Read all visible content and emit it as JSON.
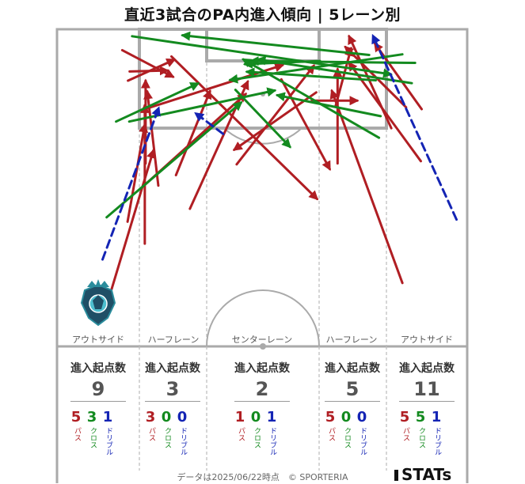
{
  "title": "直近3試合のPA内進入傾向 | 5レーン別",
  "lanes": [
    "アウトサイド",
    "ハーフレーン",
    "センターレーン",
    "ハーフレーン",
    "アウトサイド"
  ],
  "stats": [
    {
      "heading": "進入起点数",
      "total": "9",
      "pass": "5",
      "cross": "3",
      "dribble": "1"
    },
    {
      "heading": "進入起点数",
      "total": "3",
      "pass": "3",
      "cross": "0",
      "dribble": "0"
    },
    {
      "heading": "進入起点数",
      "total": "2",
      "pass": "1",
      "cross": "0",
      "dribble": "1"
    },
    {
      "heading": "進入起点数",
      "total": "5",
      "pass": "5",
      "cross": "0",
      "dribble": "0"
    },
    {
      "heading": "進入起点数",
      "total": "11",
      "pass": "5",
      "cross": "5",
      "dribble": "1"
    }
  ],
  "legend": {
    "pass": "パス",
    "cross": "クロス",
    "dribble": "ドリブル"
  },
  "colors": {
    "pass": "#b01e23",
    "cross": "#138a1f",
    "dribble": "#1424b4",
    "pitch_line": "#aaaaaa",
    "lane_line": "#bbbbbb"
  },
  "footer": "データは2025/06/22時点　© SPORTERIA",
  "logo_text": "STATs",
  "chart_data": {
    "type": "scatter",
    "title": "直近3試合のPA内進入傾向 | 5レーン別",
    "lane_names": [
      "アウトサイド",
      "ハーフレーン",
      "センターレーン",
      "ハーフレーン",
      "アウトサイド"
    ],
    "entry_counts_by_lane": [
      {
        "lane": "アウトサイド",
        "total": 9,
        "pass": 5,
        "cross": 3,
        "dribble": 1
      },
      {
        "lane": "ハーフレーン",
        "total": 3,
        "pass": 3,
        "cross": 0,
        "dribble": 0
      },
      {
        "lane": "センターレーン",
        "total": 2,
        "pass": 1,
        "cross": 0,
        "dribble": 1
      },
      {
        "lane": "ハーフレーン",
        "total": 5,
        "pass": 5,
        "cross": 0,
        "dribble": 0
      },
      {
        "lane": "アウトサイド",
        "total": 11,
        "pass": 5,
        "cross": 5,
        "dribble": 1
      }
    ],
    "arrow_units": "pitch coordinates: x 0-100 across width (left to right), y 0-100 from attacking goal line down to halfway line",
    "arrows": [
      {
        "kind": "pass",
        "from": [
          12.9,
          83.7
        ],
        "to": [
          23.5,
          38.2
        ]
      },
      {
        "kind": "pass",
        "from": [
          17.2,
          60.7
        ],
        "to": [
          21.4,
          30.1
        ]
      },
      {
        "kind": "pass",
        "from": [
          21.4,
          67.6
        ],
        "to": [
          21.4,
          24.0
        ]
      },
      {
        "kind": "pass",
        "from": [
          24.7,
          49.3
        ],
        "to": [
          22.0,
          19.6
        ]
      },
      {
        "kind": "pass",
        "from": [
          21.6,
          42.3
        ],
        "to": [
          21.6,
          16.2
        ]
      },
      {
        "kind": "pass",
        "from": [
          17.7,
          13.3
        ],
        "to": [
          26.9,
          13.0
        ]
      },
      {
        "kind": "pass",
        "from": [
          15.9,
          6.6
        ],
        "to": [
          28.3,
          15.0
        ]
      },
      {
        "kind": "pass",
        "from": [
          17.3,
          16.2
        ],
        "to": [
          28.6,
          9.6
        ]
      },
      {
        "kind": "pass",
        "from": [
          32.4,
          56.6
        ],
        "to": [
          46.5,
          16.5
        ]
      },
      {
        "kind": "pass",
        "from": [
          29.0,
          46.0
        ],
        "to": [
          37.3,
          19.5
        ]
      },
      {
        "kind": "pass",
        "from": [
          21.1,
          49.4
        ],
        "to": [
          46.0,
          20.4
        ]
      },
      {
        "kind": "pass",
        "from": [
          22.1,
          24.9
        ],
        "to": [
          55.0,
          11.3
        ]
      },
      {
        "kind": "pass",
        "from": [
          27.9,
          8.6
        ],
        "to": [
          63.4,
          53.5
        ]
      },
      {
        "kind": "pass",
        "from": [
          43.8,
          42.6
        ],
        "to": [
          62.6,
          11.5
        ]
      },
      {
        "kind": "pass",
        "from": [
          62.1,
          22.5
        ],
        "to": [
          73.2,
          22.5
        ]
      },
      {
        "kind": "pass",
        "from": [
          68.4,
          42.3
        ],
        "to": [
          68.4,
          12.6
        ]
      },
      {
        "kind": "pass",
        "from": [
          54.7,
          15.8
        ],
        "to": [
          66.5,
          44.1
        ]
      },
      {
        "kind": "pass",
        "from": [
          67.9,
          24.3
        ],
        "to": [
          71.7,
          6.0
        ]
      },
      {
        "kind": "pass",
        "from": [
          81.5,
          31.2
        ],
        "to": [
          71.2,
          2.2
        ]
      },
      {
        "kind": "pass",
        "from": [
          88.7,
          41.6
        ],
        "to": [
          71.2,
          10.6
        ]
      },
      {
        "kind": "pass",
        "from": [
          63.2,
          19.9
        ],
        "to": [
          43.2,
          38.0
        ]
      },
      {
        "kind": "pass",
        "from": [
          84.2,
          80.0
        ],
        "to": [
          67.0,
          19.4
        ]
      },
      {
        "kind": "pass",
        "from": [
          85.1,
          24.6
        ],
        "to": [
          70.3,
          5.6
        ]
      },
      {
        "kind": "pass",
        "from": [
          88.9,
          25.2
        ],
        "to": [
          77.5,
          4.5
        ]
      },
      {
        "kind": "cross",
        "from": [
          12.1,
          59.3
        ],
        "to": [
          44.9,
          23.1
        ]
      },
      {
        "kind": "cross",
        "from": [
          17.6,
          29.1
        ],
        "to": [
          53.1,
          19.3
        ]
      },
      {
        "kind": "cross",
        "from": [
          14.4,
          29.1
        ],
        "to": [
          34.4,
          17.1
        ]
      },
      {
        "kind": "cross",
        "from": [
          18.3,
          2.2
        ],
        "to": [
          81.4,
          14.2
        ]
      },
      {
        "kind": "cross",
        "from": [
          43.5,
          19.1
        ],
        "to": [
          56.8,
          37.1
        ]
      },
      {
        "kind": "cross",
        "from": [
          64.1,
          10.0
        ],
        "to": [
          45.8,
          11.0
        ]
      },
      {
        "kind": "cross",
        "from": [
          78.9,
          27.4
        ],
        "to": [
          53.7,
          20.8
        ]
      },
      {
        "kind": "cross",
        "from": [
          76.1,
          8.1
        ],
        "to": [
          30.6,
          1.9
        ]
      },
      {
        "kind": "cross",
        "from": [
          87.3,
          10.6
        ],
        "to": [
          47.3,
          10.0
        ]
      },
      {
        "kind": "cross",
        "from": [
          84.2,
          7.9
        ],
        "to": [
          42.2,
          16.0
        ]
      },
      {
        "kind": "cross",
        "from": [
          86.5,
          17.0
        ],
        "to": [
          49.0,
          9.5
        ]
      },
      {
        "kind": "cross",
        "from": [
          78.5,
          34.2
        ],
        "to": [
          45.4,
          9.5
        ]
      },
      {
        "kind": "cross",
        "from": [
          77.7,
          16.1
        ],
        "to": [
          46.3,
          13.4
        ]
      },
      {
        "kind": "dribble",
        "from": [
          11.1,
          72.6
        ],
        "to": [
          24.8,
          24.8
        ]
      },
      {
        "kind": "dribble",
        "from": [
          40.5,
          33.0
        ],
        "to": [
          33.8,
          26.5
        ]
      },
      {
        "kind": "dribble",
        "from": [
          97.4,
          60.0
        ],
        "to": [
          77.0,
          2.0
        ]
      }
    ]
  }
}
